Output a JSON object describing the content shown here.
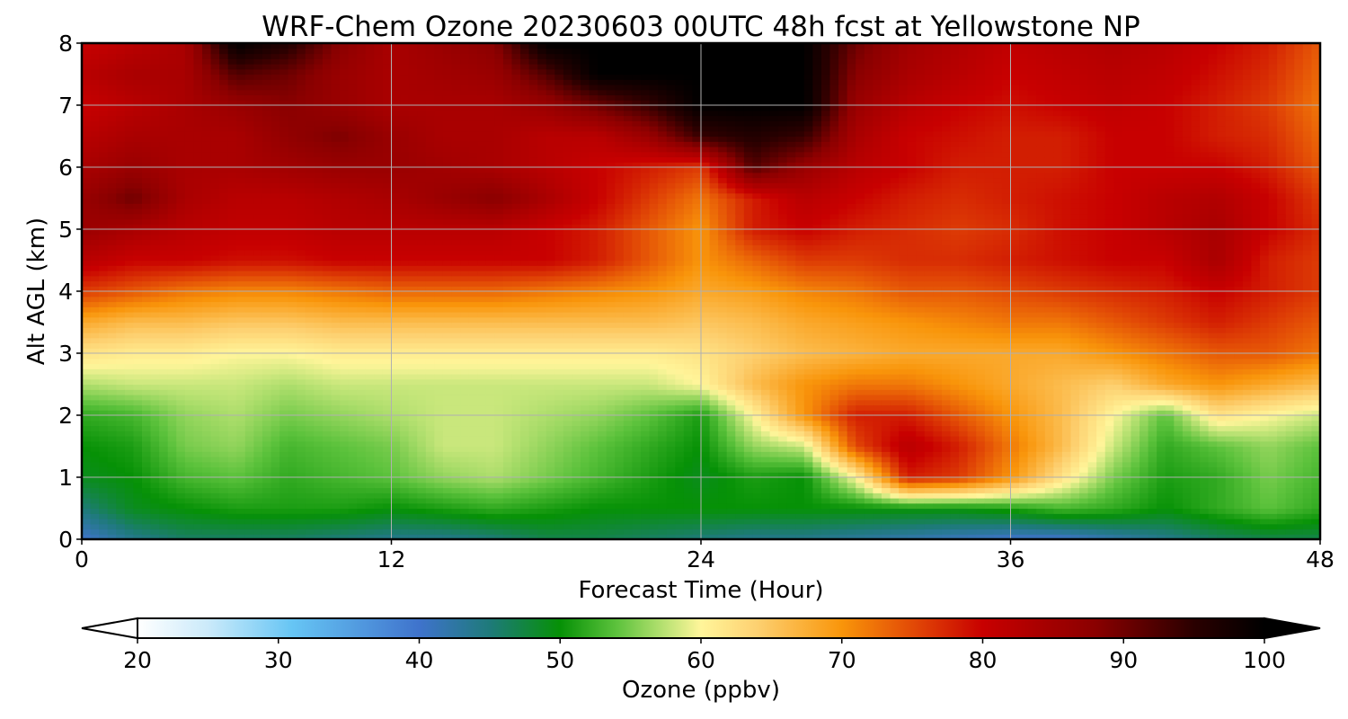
{
  "chart_data": {
    "type": "heatmap",
    "title": "WRF-Chem Ozone  20230603 00UTC 48h fcst at Yellowstone NP",
    "xlabel": "Forecast Time (Hour)",
    "ylabel": "Alt AGL (km)",
    "xlim": [
      0,
      48
    ],
    "ylim": [
      0,
      8
    ],
    "xticks": [
      0,
      12,
      24,
      36,
      48
    ],
    "yticks": [
      0,
      1,
      2,
      3,
      4,
      5,
      6,
      7,
      8
    ],
    "grid": true,
    "colorbar": {
      "label": "Ozone  (ppbv)",
      "range": [
        20,
        100
      ],
      "ticks": [
        20,
        30,
        40,
        50,
        60,
        70,
        80,
        90,
        100
      ],
      "extend": "both",
      "stops": [
        {
          "value": 20,
          "color": "#ffffff"
        },
        {
          "value": 25,
          "color": "#cbeafa"
        },
        {
          "value": 31,
          "color": "#66c5f4"
        },
        {
          "value": 40,
          "color": "#3f73cc"
        },
        {
          "value": 45,
          "color": "#1e7a7a"
        },
        {
          "value": 50,
          "color": "#069106"
        },
        {
          "value": 54,
          "color": "#5cc23c"
        },
        {
          "value": 58,
          "color": "#c9e77c"
        },
        {
          "value": 60,
          "color": "#fff59a"
        },
        {
          "value": 64,
          "color": "#fdd070"
        },
        {
          "value": 70,
          "color": "#f9950a"
        },
        {
          "value": 75,
          "color": "#e24a06"
        },
        {
          "value": 80,
          "color": "#c80000"
        },
        {
          "value": 88,
          "color": "#8a0000"
        },
        {
          "value": 95,
          "color": "#2a0000"
        },
        {
          "value": 100,
          "color": "#000000"
        }
      ]
    },
    "x": [
      0,
      2,
      4,
      6,
      8,
      10,
      12,
      14,
      16,
      18,
      20,
      22,
      24,
      26,
      28,
      30,
      32,
      34,
      36,
      38,
      40,
      42,
      44,
      46,
      48
    ],
    "y": [
      0,
      0.5,
      1,
      1.5,
      2,
      2.5,
      3,
      3.5,
      4,
      4.5,
      5,
      5.5,
      6,
      6.5,
      7,
      7.5,
      8
    ],
    "z": [
      [
        40,
        44,
        46,
        46,
        46,
        45,
        44,
        44,
        45,
        47,
        47,
        46,
        45,
        44,
        44,
        43,
        42,
        41,
        40,
        40,
        42,
        44,
        46,
        47,
        47
      ],
      [
        45,
        49,
        50,
        51,
        51,
        51,
        50,
        51,
        52,
        51,
        50,
        50,
        50,
        50,
        50,
        50,
        50,
        50,
        51,
        53,
        52,
        50,
        52,
        54,
        52
      ],
      [
        49,
        50,
        53,
        54,
        52,
        53,
        54,
        56,
        57,
        55,
        53,
        51,
        49,
        51,
        50,
        60,
        78,
        76,
        70,
        62,
        55,
        51,
        52,
        55,
        53
      ],
      [
        50,
        51,
        55,
        56,
        53,
        54,
        55,
        58,
        58,
        56,
        54,
        52,
        50,
        56,
        58,
        75,
        82,
        78,
        72,
        66,
        58,
        52,
        54,
        56,
        54
      ],
      [
        52,
        53,
        56,
        57,
        55,
        56,
        57,
        58,
        58,
        57,
        56,
        54,
        51,
        60,
        70,
        78,
        78,
        74,
        70,
        66,
        60,
        54,
        62,
        60,
        58
      ],
      [
        57,
        58,
        58,
        58,
        57,
        58,
        58,
        58,
        58,
        58,
        58,
        58,
        60,
        66,
        70,
        72,
        72,
        70,
        68,
        66,
        64,
        68,
        70,
        68,
        66
      ],
      [
        62,
        61,
        61,
        60,
        60,
        61,
        61,
        61,
        61,
        61,
        61,
        61,
        62,
        64,
        66,
        67,
        68,
        68,
        68,
        68,
        70,
        72,
        74,
        74,
        72
      ],
      [
        68,
        66,
        66,
        65,
        65,
        66,
        66,
        66,
        66,
        66,
        66,
        66,
        65,
        66,
        68,
        69,
        70,
        71,
        72,
        72,
        74,
        76,
        78,
        76,
        74
      ],
      [
        76,
        74,
        72,
        71,
        71,
        72,
        73,
        73,
        73,
        72,
        71,
        70,
        68,
        69,
        71,
        72,
        74,
        74,
        75,
        76,
        77,
        78,
        80,
        78,
        76
      ],
      [
        82,
        80,
        80,
        79,
        79,
        80,
        80,
        80,
        80,
        80,
        78,
        74,
        70,
        73,
        76,
        76,
        77,
        77,
        78,
        79,
        80,
        80,
        84,
        78,
        76
      ],
      [
        86,
        84,
        82,
        81,
        81,
        82,
        82,
        82,
        82,
        80,
        78,
        74,
        70,
        78,
        80,
        78,
        77,
        76,
        77,
        79,
        80,
        82,
        84,
        80,
        77
      ],
      [
        86,
        90,
        84,
        82,
        82,
        83,
        84,
        86,
        88,
        84,
        80,
        76,
        72,
        78,
        82,
        80,
        78,
        77,
        78,
        79,
        80,
        82,
        83,
        80,
        76
      ],
      [
        84,
        86,
        84,
        84,
        85,
        86,
        86,
        85,
        84,
        82,
        80,
        78,
        76,
        92,
        86,
        82,
        80,
        78,
        78,
        78,
        80,
        80,
        80,
        78,
        74
      ],
      [
        82,
        84,
        84,
        84,
        87,
        89,
        86,
        84,
        84,
        82,
        82,
        86,
        94,
        96,
        94,
        84,
        80,
        79,
        78,
        78,
        80,
        80,
        78,
        77,
        73
      ],
      [
        80,
        82,
        84,
        86,
        88,
        86,
        84,
        84,
        84,
        86,
        90,
        94,
        100,
        100,
        100,
        86,
        82,
        80,
        79,
        80,
        81,
        80,
        78,
        76,
        72
      ],
      [
        82,
        84,
        84,
        92,
        90,
        86,
        84,
        85,
        86,
        92,
        100,
        100,
        100,
        100,
        100,
        88,
        84,
        82,
        80,
        81,
        82,
        81,
        79,
        77,
        73
      ],
      [
        80,
        82,
        84,
        100,
        96,
        88,
        84,
        86,
        88,
        100,
        100,
        100,
        100,
        100,
        100,
        90,
        85,
        83,
        81,
        82,
        83,
        82,
        80,
        78,
        74
      ]
    ]
  }
}
